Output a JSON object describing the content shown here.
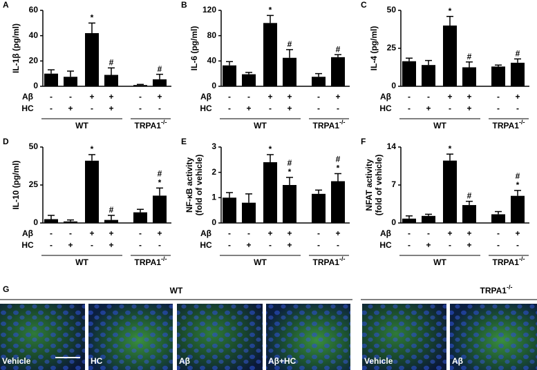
{
  "chart_data": [
    {
      "type": "bar",
      "panel": "A",
      "ylabel": [
        "IL-1β (pg/ml)"
      ],
      "color": "#000000",
      "values": [
        10,
        7.5,
        42,
        9,
        1,
        5.5
      ],
      "errors": [
        3,
        4.5,
        8,
        5.5,
        0.5,
        4
      ],
      "annotations": [
        null,
        null,
        [
          "*"
        ],
        [
          "#"
        ],
        null,
        [
          "#"
        ]
      ],
      "ylim": [
        0,
        60
      ],
      "yticks": [
        0,
        20,
        40,
        60
      ],
      "rows": [
        {
          "name": "Aβ",
          "signs": [
            "-",
            "-",
            "+",
            "+",
            "-",
            "+"
          ]
        },
        {
          "name": "HC",
          "signs": [
            "-",
            "+",
            "-",
            "+",
            "-",
            "-"
          ]
        }
      ],
      "groups": [
        {
          "label": "WT"
        },
        {
          "label": "TRPA1",
          "superscript": "-/-"
        }
      ]
    },
    {
      "type": "bar",
      "panel": "B",
      "ylabel": [
        "IL-6 (pg/ml)"
      ],
      "color": "#000000",
      "values": [
        33,
        19,
        100,
        45,
        15,
        46
      ],
      "errors": [
        6,
        3,
        12,
        13,
        5,
        4
      ],
      "annotations": [
        null,
        null,
        [
          "*"
        ],
        [
          "#"
        ],
        null,
        [
          "#"
        ]
      ],
      "ylim": [
        0,
        120
      ],
      "yticks": [
        0,
        40,
        80,
        120
      ],
      "rows": [
        {
          "name": "Aβ",
          "signs": [
            "-",
            "-",
            "+",
            "+",
            "-",
            "+"
          ]
        },
        {
          "name": "HC",
          "signs": [
            "-",
            "+",
            "-",
            "+",
            "-",
            "-"
          ]
        }
      ],
      "groups": [
        {
          "label": "WT"
        },
        {
          "label": "TRPA1",
          "superscript": "-/-"
        }
      ]
    },
    {
      "type": "bar",
      "panel": "C",
      "ylabel": [
        "IL-4 (pg/ml)"
      ],
      "color": "#000000",
      "values": [
        16.5,
        14,
        40,
        12.5,
        13,
        15.5
      ],
      "errors": [
        2,
        3,
        6,
        3.5,
        1,
        2.5
      ],
      "annotations": [
        null,
        null,
        [
          "*"
        ],
        [
          "#"
        ],
        null,
        [
          "#"
        ]
      ],
      "ylim": [
        0,
        50
      ],
      "yticks": [
        0,
        25,
        50
      ],
      "rows": [
        {
          "name": "Aβ",
          "signs": [
            "-",
            "-",
            "+",
            "+",
            "-",
            "+"
          ]
        },
        {
          "name": "HC",
          "signs": [
            "-",
            "+",
            "-",
            "+",
            "-",
            "-"
          ]
        }
      ],
      "groups": [
        {
          "label": "WT"
        },
        {
          "label": "TRPA1",
          "superscript": "-/-"
        }
      ]
    },
    {
      "type": "bar",
      "panel": "D",
      "ylabel": [
        "IL-10 (pg/ml)"
      ],
      "color": "#000000",
      "values": [
        2.5,
        1,
        41,
        2,
        7,
        18
      ],
      "errors": [
        2.5,
        1,
        4,
        3,
        2,
        5
      ],
      "annotations": [
        null,
        null,
        [
          "*"
        ],
        [
          "#"
        ],
        null,
        [
          "#",
          "*"
        ]
      ],
      "ylim": [
        0,
        50
      ],
      "yticks": [
        0,
        25,
        50
      ],
      "rows": [
        {
          "name": "Aβ",
          "signs": [
            "-",
            "-",
            "+",
            "+",
            "-",
            "+"
          ]
        },
        {
          "name": "HC",
          "signs": [
            "-",
            "+",
            "-",
            "+",
            "-",
            "-"
          ]
        }
      ],
      "groups": [
        {
          "label": "WT"
        },
        {
          "label": "TRPA1",
          "superscript": "-/-"
        }
      ]
    },
    {
      "type": "bar",
      "panel": "E",
      "ylabel": [
        "NF-κB activity",
        "(fold of vehicle)"
      ],
      "color": "#000000",
      "values": [
        1.0,
        0.8,
        2.4,
        1.5,
        1.15,
        1.65
      ],
      "errors": [
        0.2,
        0.35,
        0.3,
        0.3,
        0.15,
        0.3
      ],
      "annotations": [
        null,
        null,
        [
          "*"
        ],
        [
          "#",
          "*"
        ],
        null,
        [
          "#",
          "*"
        ]
      ],
      "ylim": [
        0,
        3
      ],
      "yticks": [
        0,
        1,
        2,
        3
      ],
      "rows": [
        {
          "name": "Aβ",
          "signs": [
            "-",
            "-",
            "+",
            "+",
            "-",
            "+"
          ]
        },
        {
          "name": "HC",
          "signs": [
            "-",
            "+",
            "-",
            "+",
            "-",
            "-"
          ]
        }
      ],
      "groups": [
        {
          "label": "WT"
        },
        {
          "label": "TRPA1",
          "superscript": "-/-"
        }
      ]
    },
    {
      "type": "bar",
      "panel": "F",
      "ylabel": [
        "NFAT activity",
        "(fold of vehicle)"
      ],
      "color": "#000000",
      "values": [
        0.8,
        1.3,
        11.5,
        3.3,
        1.6,
        5.0
      ],
      "errors": [
        0.5,
        0.3,
        1.2,
        0.7,
        0.5,
        1.0
      ],
      "annotations": [
        null,
        null,
        [
          "*"
        ],
        [
          "#"
        ],
        null,
        [
          "#",
          "*"
        ]
      ],
      "ylim": [
        0,
        14
      ],
      "yticks": [
        0,
        7,
        14
      ],
      "rows": [
        {
          "name": "Aβ",
          "signs": [
            "-",
            "-",
            "+",
            "+",
            "-",
            "+"
          ]
        },
        {
          "name": "HC",
          "signs": [
            "-",
            "+",
            "-",
            "+",
            "-",
            "-"
          ]
        }
      ],
      "groups": [
        {
          "label": "WT"
        },
        {
          "label": "TRPA1",
          "superscript": "-/-"
        }
      ]
    }
  ],
  "panel_g": {
    "letter": "G",
    "groups": [
      {
        "label": "WT"
      },
      {
        "label": "TRPA1",
        "superscript": "-/-"
      }
    ],
    "images": [
      "Vehicle",
      "HC",
      "Aβ",
      "Aβ+HC",
      "Vehicle",
      "Aβ"
    ]
  }
}
